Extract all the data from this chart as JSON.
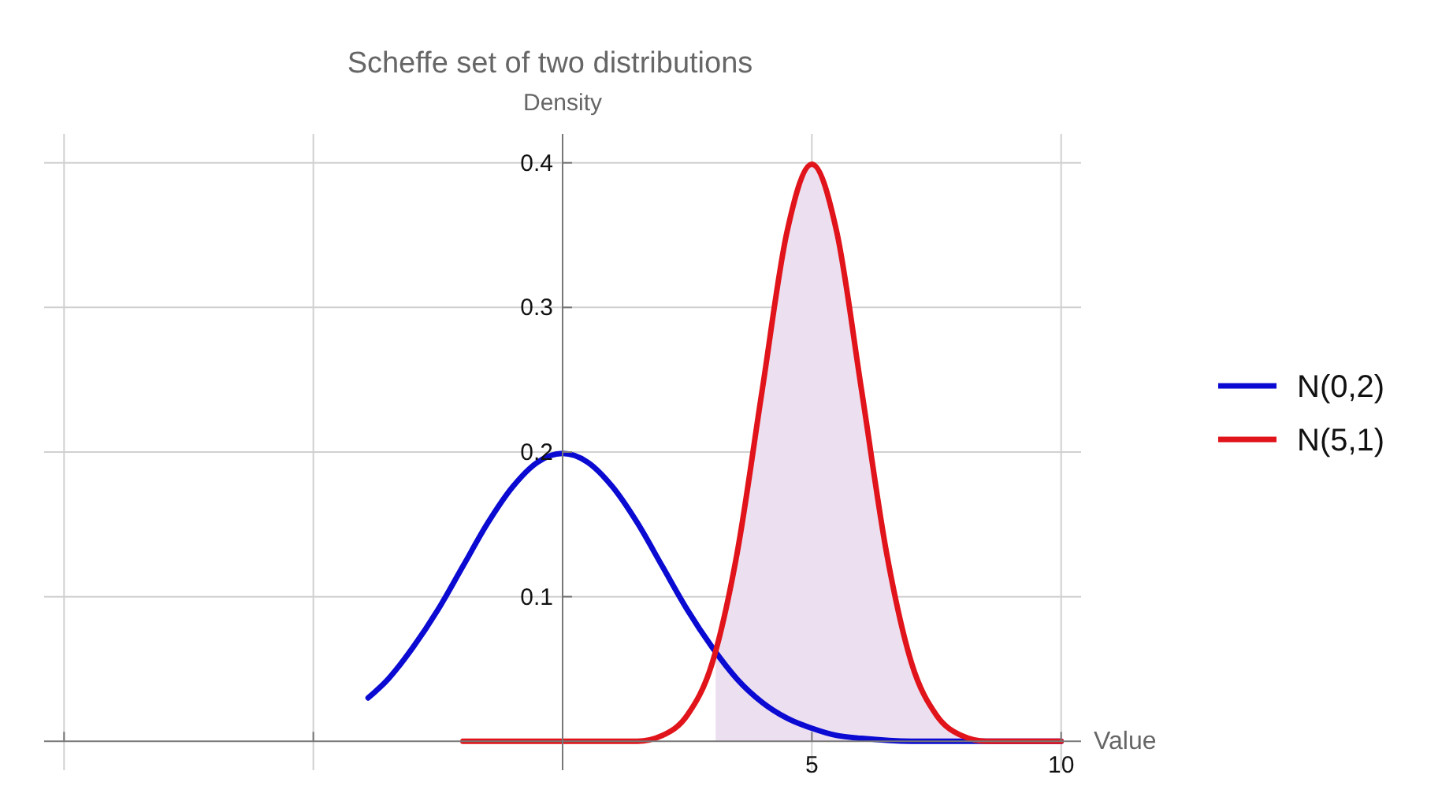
{
  "chart_data": {
    "type": "line",
    "title": "Scheffe set of two distributions",
    "xlabel": "Value",
    "ylabel": "Density",
    "xlim": [
      -10.4,
      10.4
    ],
    "ylim": [
      -0.02,
      0.42
    ],
    "xticks": [
      {
        "value": -10,
        "label": null
      },
      {
        "value": -5,
        "label": null
      },
      5,
      10
    ],
    "yticks": [
      0.1,
      0.2,
      0.3,
      0.4
    ],
    "grid": true,
    "legend": "right",
    "marker": "none",
    "line_style": "solid",
    "series": [
      {
        "type": "area",
        "color": "#ecdff0",
        "x": [
          3.07,
          3.5,
          4,
          4.5,
          5,
          5.5,
          6,
          6.5,
          7,
          7.5,
          8,
          8.5,
          9,
          10
        ],
        "values": [
          0.06,
          0.13,
          0.242,
          0.352,
          0.399,
          0.352,
          0.242,
          0.13,
          0.054,
          0.018,
          0.004,
          0,
          0,
          0
        ]
      },
      {
        "name": "N(0,2)",
        "color": "#0a0ad2",
        "x": [
          -3.9,
          -3.5,
          -3,
          -2.5,
          -2,
          -1.5,
          -1,
          -0.5,
          0,
          0.5,
          1,
          1.5,
          2,
          2.5,
          3,
          3.5,
          4,
          4.5,
          5,
          5.5,
          6,
          7,
          8,
          10
        ],
        "values": [
          0.03,
          0.043,
          0.065,
          0.091,
          0.121,
          0.151,
          0.176,
          0.193,
          0.199,
          0.193,
          0.176,
          0.151,
          0.121,
          0.091,
          0.065,
          0.043,
          0.027,
          0.016,
          0.009,
          0.004,
          0.002,
          0,
          0,
          0
        ]
      },
      {
        "name": "N(5,1)",
        "color": "#e0141a",
        "x": [
          -2,
          0,
          1,
          1.5,
          2,
          2.5,
          3,
          3.5,
          4,
          4.5,
          5,
          5.5,
          6,
          6.5,
          7,
          7.5,
          8,
          8.5,
          9,
          10
        ],
        "values": [
          0,
          0,
          0,
          0,
          0.004,
          0.018,
          0.054,
          0.13,
          0.242,
          0.352,
          0.399,
          0.352,
          0.242,
          0.13,
          0.054,
          0.018,
          0.004,
          0,
          0,
          0
        ]
      }
    ]
  }
}
